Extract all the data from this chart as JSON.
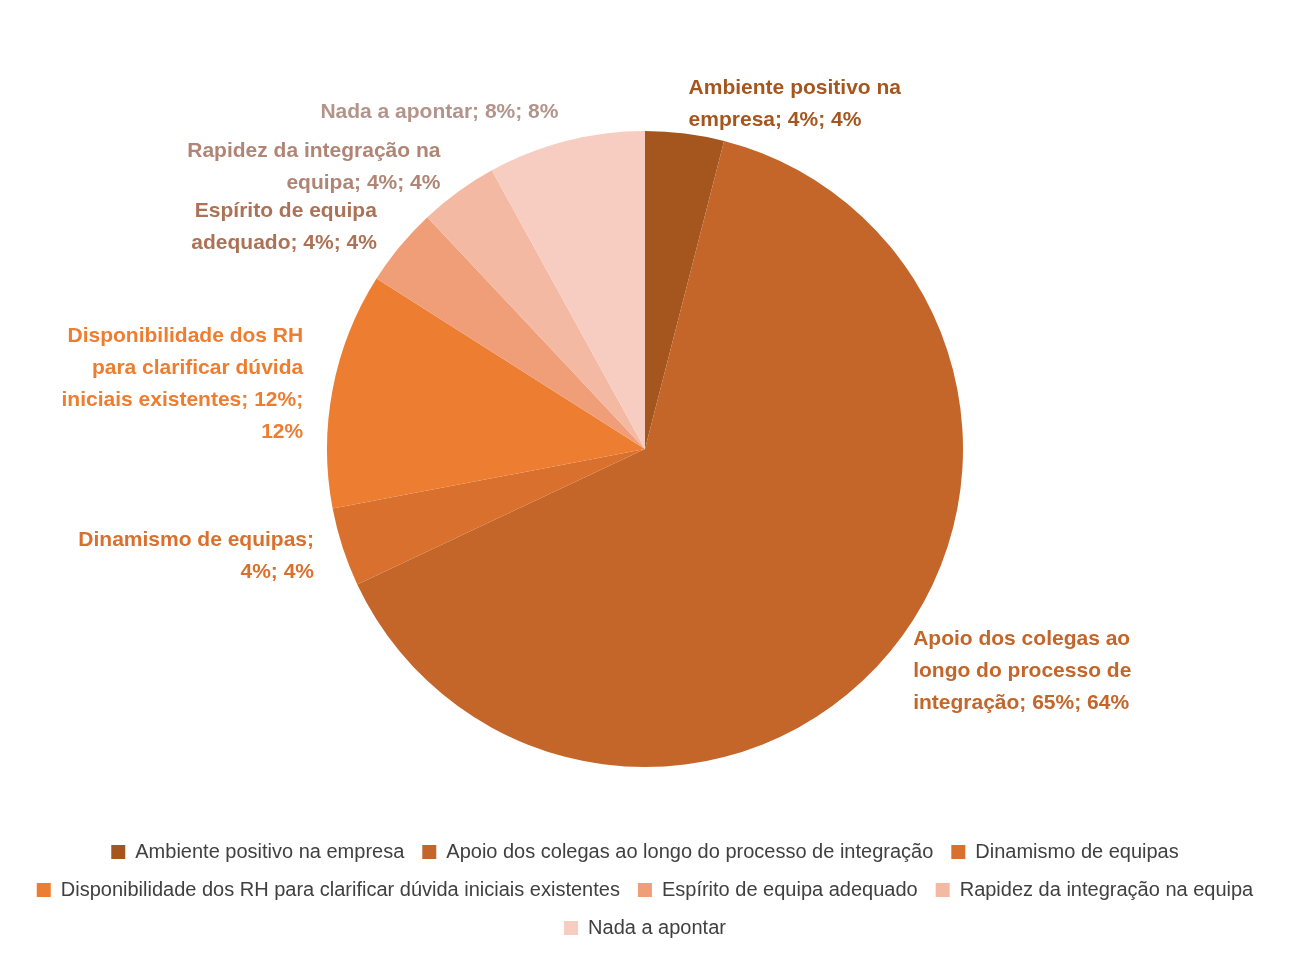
{
  "chart_data": {
    "type": "pie",
    "categories": [
      "Ambiente positivo na empresa",
      "Apoio dos colegas ao longo do processo de integração",
      "Dinamismo de equipas",
      "Disponibilidade dos RH para clarificar dúvida iniciais existentes",
      "Espírito de equipa adequado",
      "Rapidez da integração na equipa",
      "Nada a apontar"
    ],
    "values": [
      4,
      64,
      4,
      12,
      4,
      4,
      8
    ],
    "value_labels": [
      "; 4%; 4%",
      "; 65%; 64%",
      "; 4%; 4%",
      "; 12%; 12%",
      "; 4%; 4%",
      "; 4%; 4%",
      "; 8%; 8%"
    ],
    "colors": [
      "#a5561f",
      "#c4652a",
      "#d9702e",
      "#ed7d31",
      "#f09e78",
      "#f4b9a3",
      "#f8cdc1"
    ],
    "legend": "bottom"
  }
}
